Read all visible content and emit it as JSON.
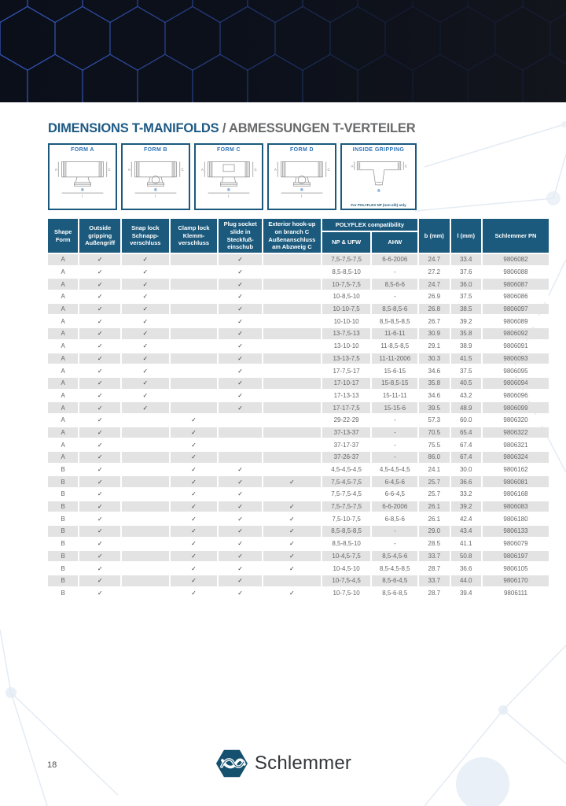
{
  "page": {
    "number": "18"
  },
  "title": {
    "en": "DIMENSIONS T-MANIFOLDS",
    "sep": " / ",
    "de": "ABMESSUNGEN T-VERTEILER"
  },
  "forms": [
    {
      "label": "FORM A"
    },
    {
      "label": "FORM B"
    },
    {
      "label": "FORM C"
    },
    {
      "label": "FORM D"
    },
    {
      "label": "INSIDE GRIPPING",
      "note": "For POLYFLEX NP (non-slit) only"
    }
  ],
  "diagram_labels": {
    "a": "A",
    "c": "C",
    "b": "B",
    "l": "l"
  },
  "table": {
    "headers": {
      "shape": {
        "en": "Shape Form",
        "de": ""
      },
      "outside": {
        "en": "Outside gripping",
        "de": "Außengriff"
      },
      "snap": {
        "en": "Snap lock",
        "de": "Schnapp-verschluss"
      },
      "clamp": {
        "en": "Clamp lock",
        "de": "Klemm-verschluss"
      },
      "plug": {
        "en": "Plug socket slide in",
        "de": "Steckfuß-einschub"
      },
      "exterior": {
        "en": "Exterior hook-up on branch C",
        "de": "Außenanschluss am Abzweig C"
      },
      "polyflex_group": "POLYFLEX compatibility",
      "np_ufw": "NP & UFW",
      "ahw": "AHW",
      "b_mm": "b (mm)",
      "l_mm": "l (mm)",
      "pn": "Schlemmer PN"
    },
    "col_names": [
      "cell-shape-form",
      "cell-outside-gripping",
      "cell-snap-lock",
      "cell-clamp-lock",
      "cell-plug-socket",
      "cell-exterior-hookup",
      "cell-np-ufw",
      "cell-ahw",
      "cell-b-mm",
      "cell-l-mm",
      "cell-schlemmer-pn"
    ],
    "rows": [
      [
        "A",
        "✓",
        "✓",
        "",
        "✓",
        "",
        "7,5-7,5-7,5",
        "6-6-2006",
        "24.7",
        "33.4",
        "9806082"
      ],
      [
        "A",
        "✓",
        "✓",
        "",
        "✓",
        "",
        "8,5-8,5-10",
        "-",
        "27.2",
        "37.6",
        "9806088"
      ],
      [
        "A",
        "✓",
        "✓",
        "",
        "✓",
        "",
        "10-7,5-7,5",
        "8,5-6-6",
        "24.7",
        "36.0",
        "9806087"
      ],
      [
        "A",
        "✓",
        "✓",
        "",
        "✓",
        "",
        "10-8,5-10",
        "-",
        "26.9",
        "37.5",
        "9806086"
      ],
      [
        "A",
        "✓",
        "✓",
        "",
        "✓",
        "",
        "10-10-7,5",
        "8,5-8,5-6",
        "26.8",
        "38.5",
        "9806097"
      ],
      [
        "A",
        "✓",
        "✓",
        "",
        "✓",
        "",
        "10-10-10",
        "8,5-8,5-8,5",
        "26.7",
        "39.2",
        "9806089"
      ],
      [
        "A",
        "✓",
        "✓",
        "",
        "✓",
        "",
        "13-7,5-13",
        "11-6-11",
        "30.9",
        "35.8",
        "9806092"
      ],
      [
        "A",
        "✓",
        "✓",
        "",
        "✓",
        "",
        "13-10-10",
        "11-8,5-8,5",
        "29.1",
        "38.9",
        "9806091"
      ],
      [
        "A",
        "✓",
        "✓",
        "",
        "✓",
        "",
        "13-13-7,5",
        "11-11-2006",
        "30.3",
        "41.5",
        "9806093"
      ],
      [
        "A",
        "✓",
        "✓",
        "",
        "✓",
        "",
        "17-7,5-17",
        "15-6-15",
        "34.6",
        "37.5",
        "9806095"
      ],
      [
        "A",
        "✓",
        "✓",
        "",
        "✓",
        "",
        "17-10-17",
        "15-8,5-15",
        "35.8",
        "40.5",
        "9806094"
      ],
      [
        "A",
        "✓",
        "✓",
        "",
        "✓",
        "",
        "17-13-13",
        "15-11-11",
        "34.6",
        "43.2",
        "9806096"
      ],
      [
        "A",
        "✓",
        "✓",
        "",
        "✓",
        "",
        "17-17-7,5",
        "15-15-6",
        "39.5",
        "48.9",
        "9806099"
      ],
      [
        "A",
        "✓",
        "",
        "✓",
        "",
        "",
        "29-22-29",
        "-",
        "57.3",
        "60.0",
        "9806320"
      ],
      [
        "A",
        "✓",
        "",
        "✓",
        "",
        "",
        "37-13-37",
        "-",
        "70.5",
        "65.4",
        "9806322"
      ],
      [
        "A",
        "✓",
        "",
        "✓",
        "",
        "",
        "37-17-37",
        "-",
        "75.5",
        "67.4",
        "9806321"
      ],
      [
        "A",
        "✓",
        "",
        "✓",
        "",
        "",
        "37-26-37",
        "-",
        "86.0",
        "67.4",
        "9806324"
      ],
      [
        "B",
        "✓",
        "",
        "✓",
        "✓",
        "",
        "4,5-4,5-4,5",
        "4,5-4,5-4,5",
        "24.1",
        "30.0",
        "9806162"
      ],
      [
        "B",
        "✓",
        "",
        "✓",
        "✓",
        "✓",
        "7,5-4,5-7,5",
        "6-4,5-6",
        "25.7",
        "36.6",
        "9806081"
      ],
      [
        "B",
        "✓",
        "",
        "✓",
        "✓",
        "",
        "7,5-7,5-4,5",
        "6-6-4,5",
        "25.7",
        "33.2",
        "9806168"
      ],
      [
        "B",
        "✓",
        "",
        "✓",
        "✓",
        "✓",
        "7,5-7,5-7,5",
        "6-6-2006",
        "26.1",
        "39.2",
        "9806083"
      ],
      [
        "B",
        "✓",
        "",
        "✓",
        "✓",
        "✓",
        "7,5-10-7,5",
        "6-8,5-6",
        "26.1",
        "42.4",
        "9806180"
      ],
      [
        "B",
        "✓",
        "",
        "✓",
        "✓",
        "✓",
        "8,5-8,5-8,5",
        "-",
        "29.0",
        "43.4",
        "9806133"
      ],
      [
        "B",
        "✓",
        "",
        "✓",
        "✓",
        "✓",
        "8,5-8,5-10",
        "-",
        "28.5",
        "41.1",
        "9806079"
      ],
      [
        "B",
        "✓",
        "",
        "✓",
        "✓",
        "✓",
        "10-4,5-7,5",
        "8,5-4,5-6",
        "33.7",
        "50.8",
        "9806197"
      ],
      [
        "B",
        "✓",
        "",
        "✓",
        "✓",
        "✓",
        "10-4,5-10",
        "8,5-4,5-8,5",
        "28.7",
        "36.6",
        "9806105"
      ],
      [
        "B",
        "✓",
        "",
        "✓",
        "✓",
        "",
        "10-7,5-4,5",
        "8,5-6-4,5",
        "33.7",
        "44.0",
        "9806170"
      ],
      [
        "B",
        "✓",
        "",
        "✓",
        "✓",
        "✓",
        "10-7,5-10",
        "8,5-6-8,5",
        "28.7",
        "39.4",
        "9806111"
      ]
    ]
  },
  "logo": {
    "text": "Schlemmer"
  },
  "colors": {
    "header_blue": "#1b5a7d",
    "row_gray": "#e3e3e3",
    "title_blue": "#1e5a85",
    "form_label_blue": "#2e73b8",
    "banner_hex_blue": "#3c63d4",
    "banner_dark": "#0b0f1a"
  }
}
